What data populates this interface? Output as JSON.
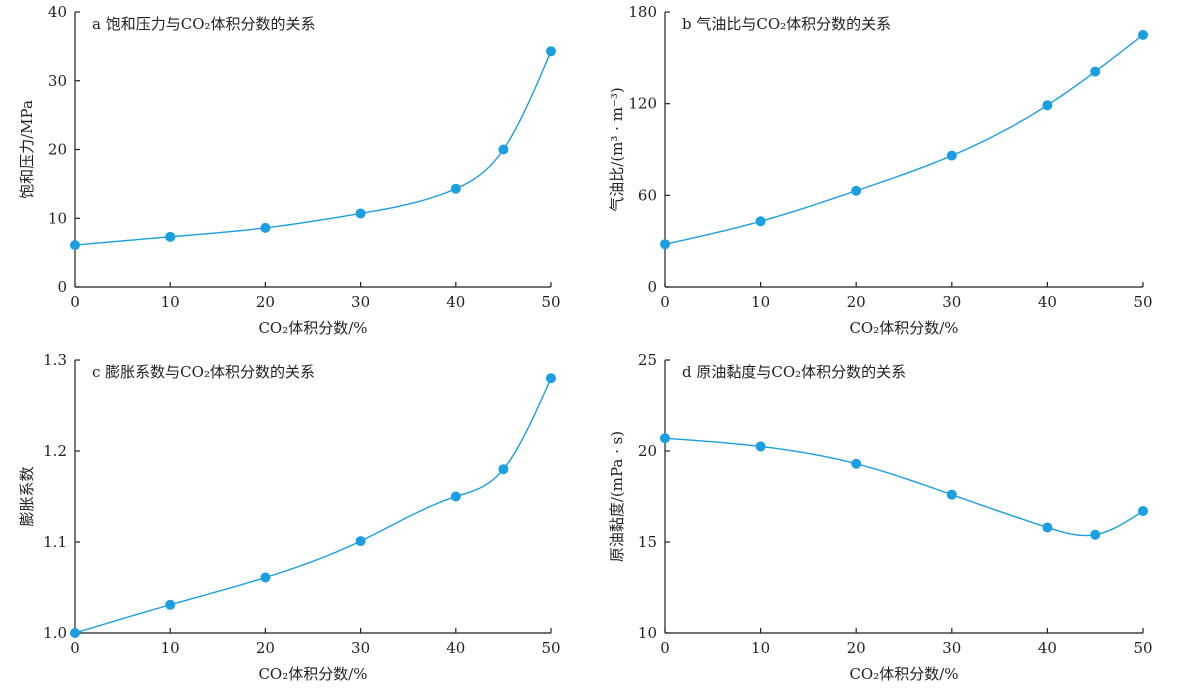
{
  "figure": {
    "style": {
      "series_color": "#1b9fe0"
    }
  },
  "chart_data": [
    {
      "type": "line",
      "title": "a 饱和压力与CO₂体积分数的关系",
      "xlabel": "CO₂体积分数/%",
      "ylabel": "饱和压力/MPa",
      "xlim": [
        0,
        50
      ],
      "ylim": [
        0,
        40
      ],
      "xticks": [
        0,
        10,
        20,
        30,
        40,
        50
      ],
      "yticks": [
        0,
        10,
        20,
        30,
        40
      ],
      "xtick_labels": [
        "0",
        "10",
        "20",
        "30",
        "40",
        "50"
      ],
      "ytick_labels": [
        "0",
        "10",
        "20",
        "30",
        "40"
      ],
      "grid": false,
      "series": [
        {
          "x": [
            0,
            10,
            20,
            30,
            40,
            45,
            50
          ],
          "values": [
            6.1,
            7.3,
            8.6,
            10.7,
            14.3,
            20.0,
            34.3
          ]
        }
      ]
    },
    {
      "type": "line",
      "title": "b 气油比与CO₂体积分数的关系",
      "xlabel": "CO₂体积分数/%",
      "ylabel": "气油比/(m³ · m⁻³)",
      "xlim": [
        0,
        50
      ],
      "ylim": [
        0,
        180
      ],
      "xticks": [
        0,
        10,
        20,
        30,
        40,
        50
      ],
      "yticks": [
        0,
        60,
        120,
        180
      ],
      "xtick_labels": [
        "0",
        "10",
        "20",
        "30",
        "40",
        "50"
      ],
      "ytick_labels": [
        "0",
        "60",
        "120",
        "180"
      ],
      "grid": false,
      "series": [
        {
          "x": [
            0,
            10,
            20,
            30,
            40,
            45,
            50
          ],
          "values": [
            28,
            43,
            63,
            86,
            119,
            141,
            165
          ]
        }
      ]
    },
    {
      "type": "line",
      "title": "c 膨胀系数与CO₂体积分数的关系",
      "xlabel": "CO₂体积分数/%",
      "ylabel": "膨胀系数",
      "xlim": [
        0,
        50
      ],
      "ylim": [
        1.0,
        1.3
      ],
      "xticks": [
        0,
        10,
        20,
        30,
        40,
        50
      ],
      "yticks": [
        1.0,
        1.1,
        1.2,
        1.3
      ],
      "xtick_labels": [
        "0",
        "10",
        "20",
        "30",
        "40",
        "50"
      ],
      "ytick_labels": [
        "1.0",
        "1.1",
        "1.2",
        "1.3"
      ],
      "grid": false,
      "series": [
        {
          "x": [
            0,
            10,
            20,
            30,
            40,
            45,
            50
          ],
          "values": [
            1.0,
            1.031,
            1.061,
            1.101,
            1.15,
            1.18,
            1.28
          ]
        }
      ]
    },
    {
      "type": "line",
      "title": "d 原油黏度与CO₂体积分数的关系",
      "xlabel": "CO₂体积分数/%",
      "ylabel": "原油黏度/(mPa · s)",
      "xlim": [
        0,
        50
      ],
      "ylim": [
        10,
        25
      ],
      "xticks": [
        0,
        10,
        20,
        30,
        40,
        50
      ],
      "yticks": [
        10,
        15,
        20,
        25
      ],
      "xtick_labels": [
        "0",
        "10",
        "20",
        "30",
        "40",
        "50"
      ],
      "ytick_labels": [
        "10",
        "15",
        "20",
        "25"
      ],
      "grid": false,
      "series": [
        {
          "x": [
            0,
            10,
            20,
            30,
            40,
            45,
            50
          ],
          "values": [
            20.7,
            20.25,
            19.3,
            17.6,
            15.8,
            15.4,
            16.7
          ]
        }
      ]
    }
  ]
}
